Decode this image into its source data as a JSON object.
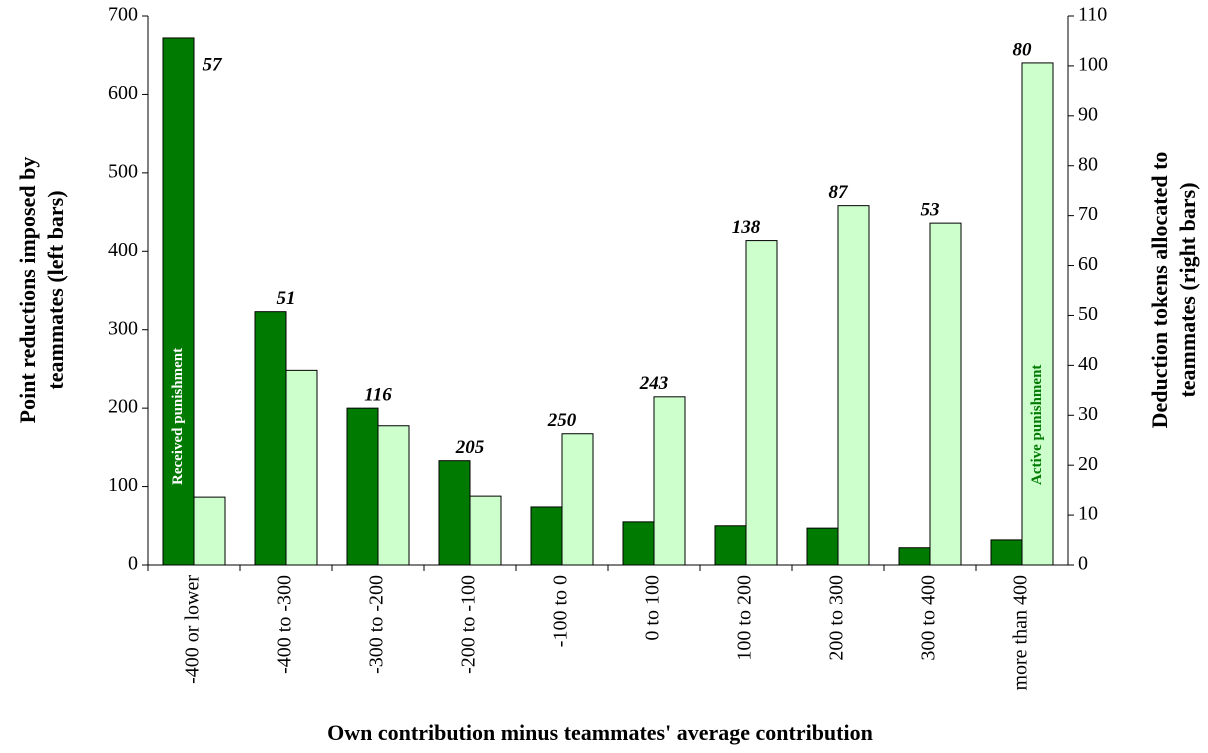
{
  "chart_data": {
    "type": "bar",
    "x_label": "Own contribution minus teammates' average contribution",
    "y_label": [
      "Point reductions imposed by",
      "teammates (left bars)"
    ],
    "y2_label": [
      "Deduction tokens allocated to",
      "teammates (right bars)"
    ],
    "categories": [
      "-400 or lower",
      "-400 to -300",
      "-300 to -200",
      "-200 to -100",
      "-100 to 0",
      "0 to 100",
      "100 to 200",
      "200 to 300",
      "300 to 400",
      "more than 400"
    ],
    "series": [
      {
        "name": "Received punishment",
        "color": "#007a00",
        "values": [
          672,
          323,
          200,
          133,
          74,
          55,
          50,
          47,
          22,
          32
        ]
      },
      {
        "name": "Active punishment",
        "color": "#ccffcc",
        "axis": "y2",
        "values": [
          13.6,
          39,
          27.9,
          13.8,
          26.3,
          33.7,
          65,
          72,
          68.5,
          100.6
        ]
      }
    ],
    "annotations": [
      "57",
      "51",
      "116",
      "205",
      "250",
      "243",
      "138",
      "87",
      "53",
      "80"
    ],
    "ylim": [
      0,
      700
    ],
    "yticks": [
      0,
      100,
      200,
      300,
      400,
      500,
      600,
      700
    ],
    "y2lim": [
      0,
      110
    ],
    "y2ticks": [
      0,
      10,
      20,
      30,
      40,
      50,
      60,
      70,
      80,
      90,
      100,
      110
    ],
    "grid": false
  }
}
